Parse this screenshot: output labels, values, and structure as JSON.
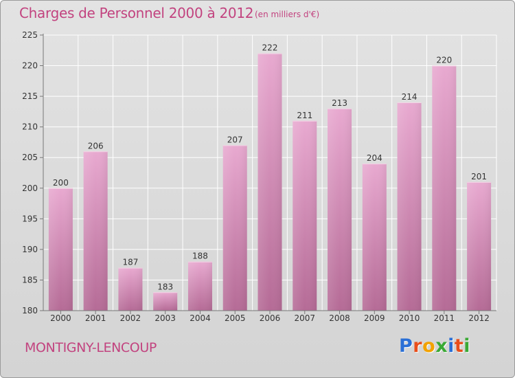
{
  "header": {
    "title": "Charges de Personnel 2000 à 2012",
    "unit": "(en milliers d'€)"
  },
  "footer": {
    "commune": "MONTIGNY-LENCOUP",
    "logo": "Proxiti"
  },
  "colors": {
    "title": "#c2437f",
    "bar_top": "#e8a9d0",
    "bar_bottom": "#b56b96",
    "logo_letters": [
      "#2a6fd6",
      "#e94e1b",
      "#f2a200",
      "#3aa935",
      "#2a6fd6",
      "#e94e1b",
      "#3aa935"
    ]
  },
  "chart_data": {
    "type": "bar",
    "categories": [
      "2000",
      "2001",
      "2002",
      "2003",
      "2004",
      "2005",
      "2006",
      "2007",
      "2008",
      "2009",
      "2010",
      "2011",
      "2012"
    ],
    "values": [
      200,
      206,
      187,
      183,
      188,
      207,
      222,
      211,
      213,
      204,
      214,
      220,
      201
    ],
    "ylim": [
      180,
      225
    ],
    "yticks": [
      180,
      185,
      190,
      195,
      200,
      205,
      210,
      215,
      220,
      225
    ],
    "grid": true,
    "data_labels": true
  }
}
